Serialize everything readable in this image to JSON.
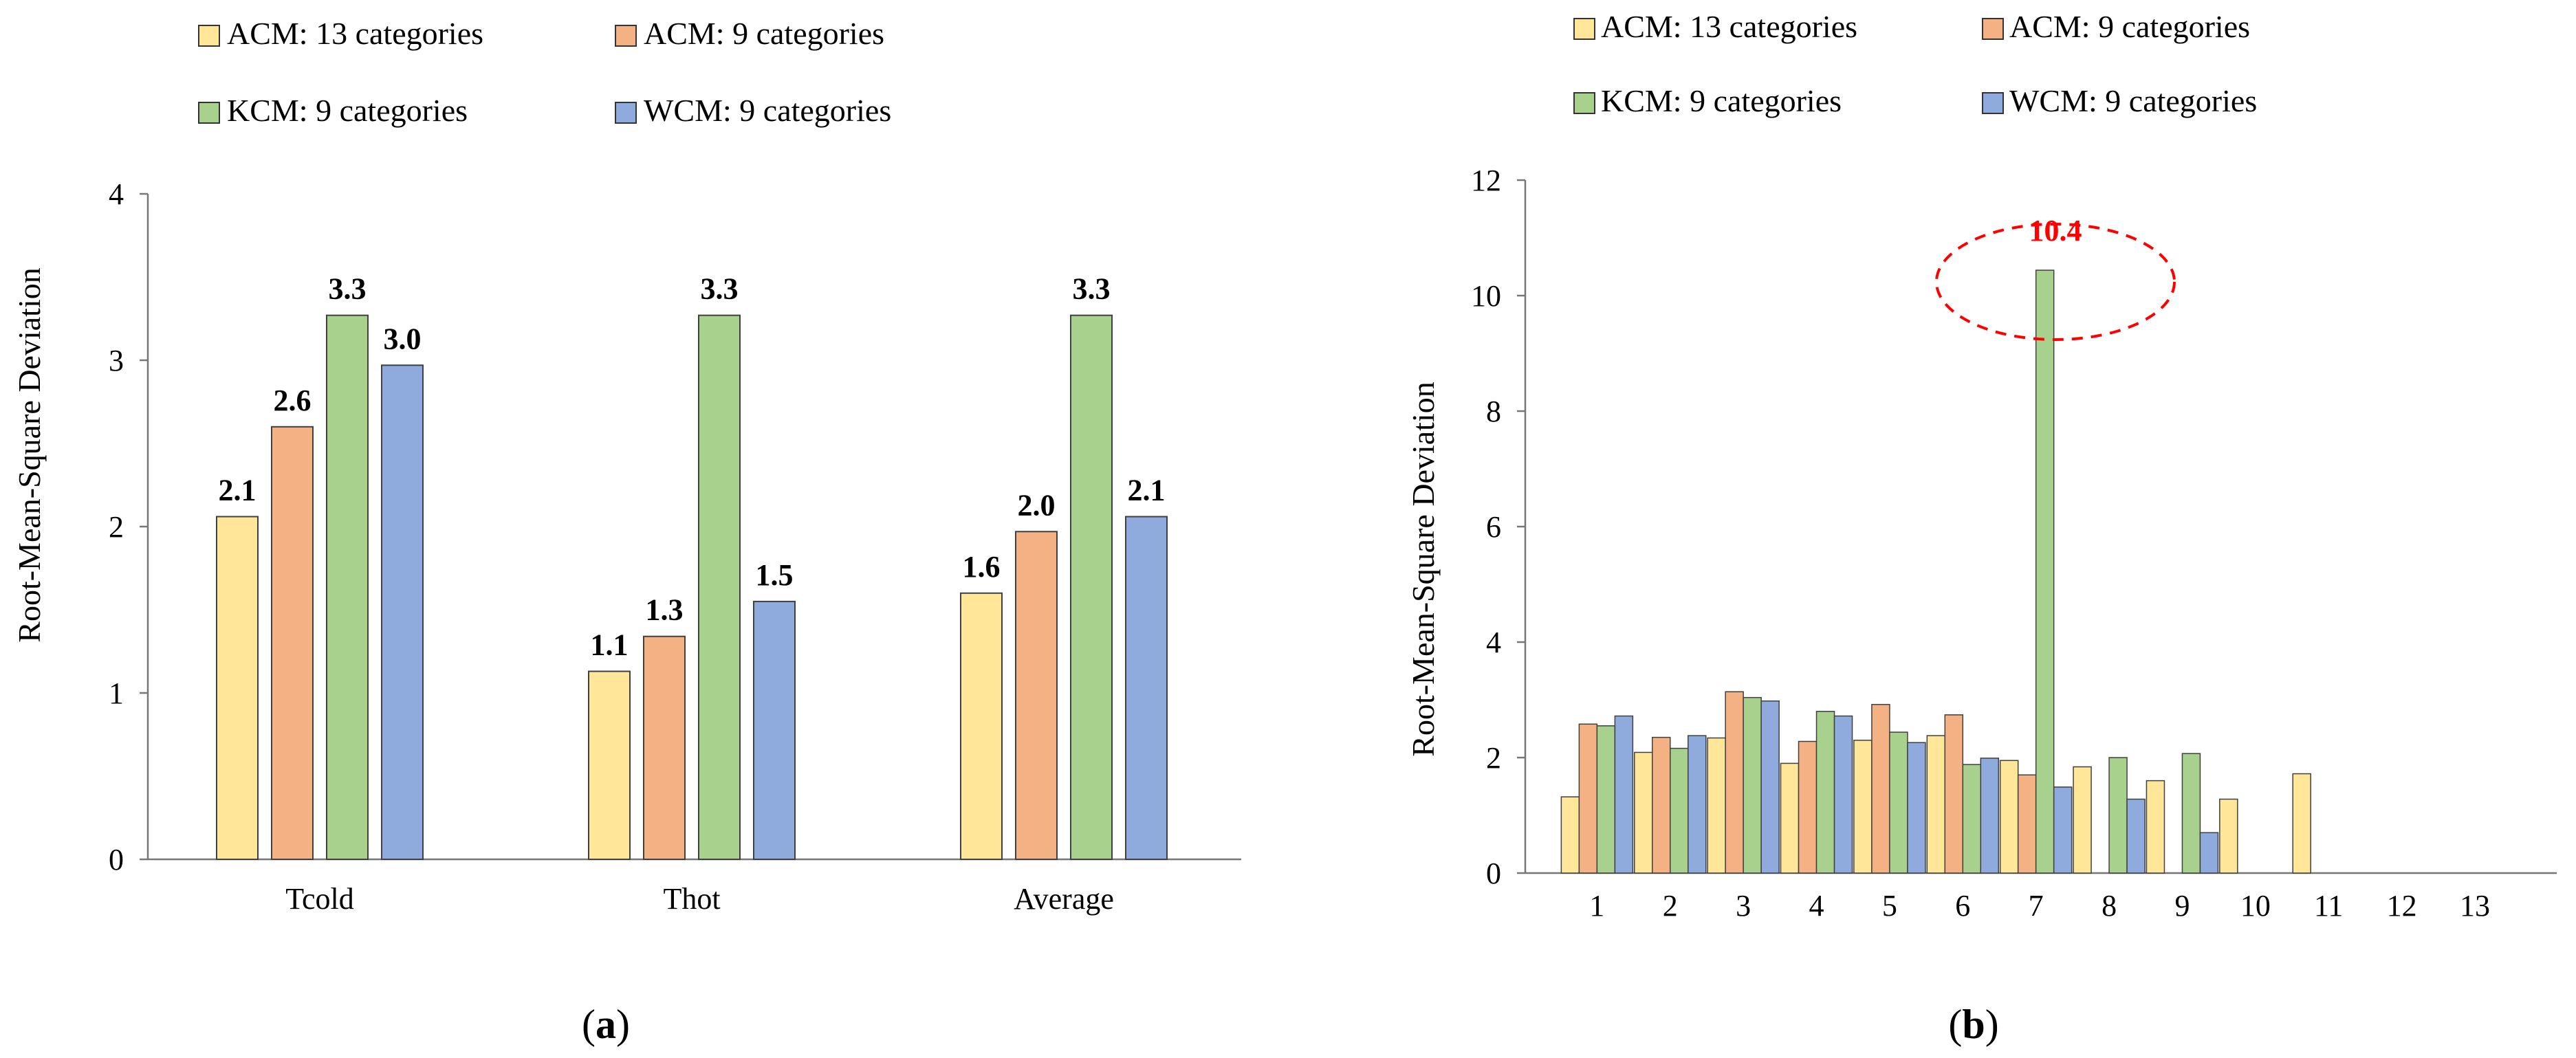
{
  "series_colors": [
    "#FFE699",
    "#F4B183",
    "#A9D18E",
    "#8FAADC"
  ],
  "chart_data": [
    {
      "type": "bar",
      "panel_label": "a",
      "categories": [
        "Tcold",
        "Thot",
        "Average"
      ],
      "series": [
        {
          "name": "ACM: 13 categories",
          "values": [
            2.06,
            1.13,
            1.6
          ]
        },
        {
          "name": "ACM: 9 categories",
          "values": [
            2.6,
            1.34,
            1.97
          ]
        },
        {
          "name": "KCM: 9 categories",
          "values": [
            3.27,
            3.27,
            3.27
          ]
        },
        {
          "name": "WCM: 9 categories",
          "values": [
            2.97,
            1.55,
            2.06
          ]
        }
      ],
      "data_labels": [
        [
          "2.1",
          "1.1",
          "1.6"
        ],
        [
          "2.6",
          "1.3",
          "2.0"
        ],
        [
          "3.3",
          "3.3",
          "3.3"
        ],
        [
          "3.0",
          "1.5",
          "2.1"
        ]
      ],
      "title": "",
      "xlabel": "",
      "ylabel": "Root-Mean-Square Deviation",
      "ylim": [
        0,
        4
      ],
      "yticks": [
        "0",
        "1",
        "2",
        "3",
        "4"
      ],
      "grid": false,
      "legend": "top"
    },
    {
      "type": "bar",
      "panel_label": "b",
      "categories": [
        "1",
        "2",
        "3",
        "4",
        "5",
        "6",
        "7",
        "8",
        "9",
        "10",
        "11",
        "12",
        "13"
      ],
      "series": [
        {
          "name": "ACM: 13 categories",
          "values": [
            1.32,
            2.09,
            2.34,
            1.9,
            2.3,
            2.38,
            1.95,
            1.84,
            1.6,
            1.28,
            1.72,
            0,
            0
          ]
        },
        {
          "name": "ACM: 9 categories",
          "values": [
            2.58,
            2.35,
            3.14,
            2.28,
            2.92,
            2.74,
            1.7,
            null,
            null,
            null,
            null,
            null,
            null
          ]
        },
        {
          "name": "KCM: 9 categories",
          "values": [
            2.55,
            2.16,
            3.04,
            2.8,
            2.44,
            1.88,
            10.44,
            2.0,
            2.07,
            null,
            null,
            null,
            null
          ]
        },
        {
          "name": "WCM: 9 categories",
          "values": [
            2.72,
            2.38,
            2.98,
            2.72,
            2.26,
            1.99,
            1.49,
            1.28,
            0.7,
            null,
            null,
            null,
            null
          ]
        }
      ],
      "annotation": "10.4",
      "annotation_color": "#FF0000",
      "title": "",
      "xlabel": "",
      "ylabel": "Root-Mean-Square Deviation",
      "ylim": [
        0,
        12
      ],
      "yticks": [
        "0",
        "2",
        "4",
        "6",
        "8",
        "10",
        "12"
      ],
      "grid": false,
      "legend": "top"
    }
  ]
}
